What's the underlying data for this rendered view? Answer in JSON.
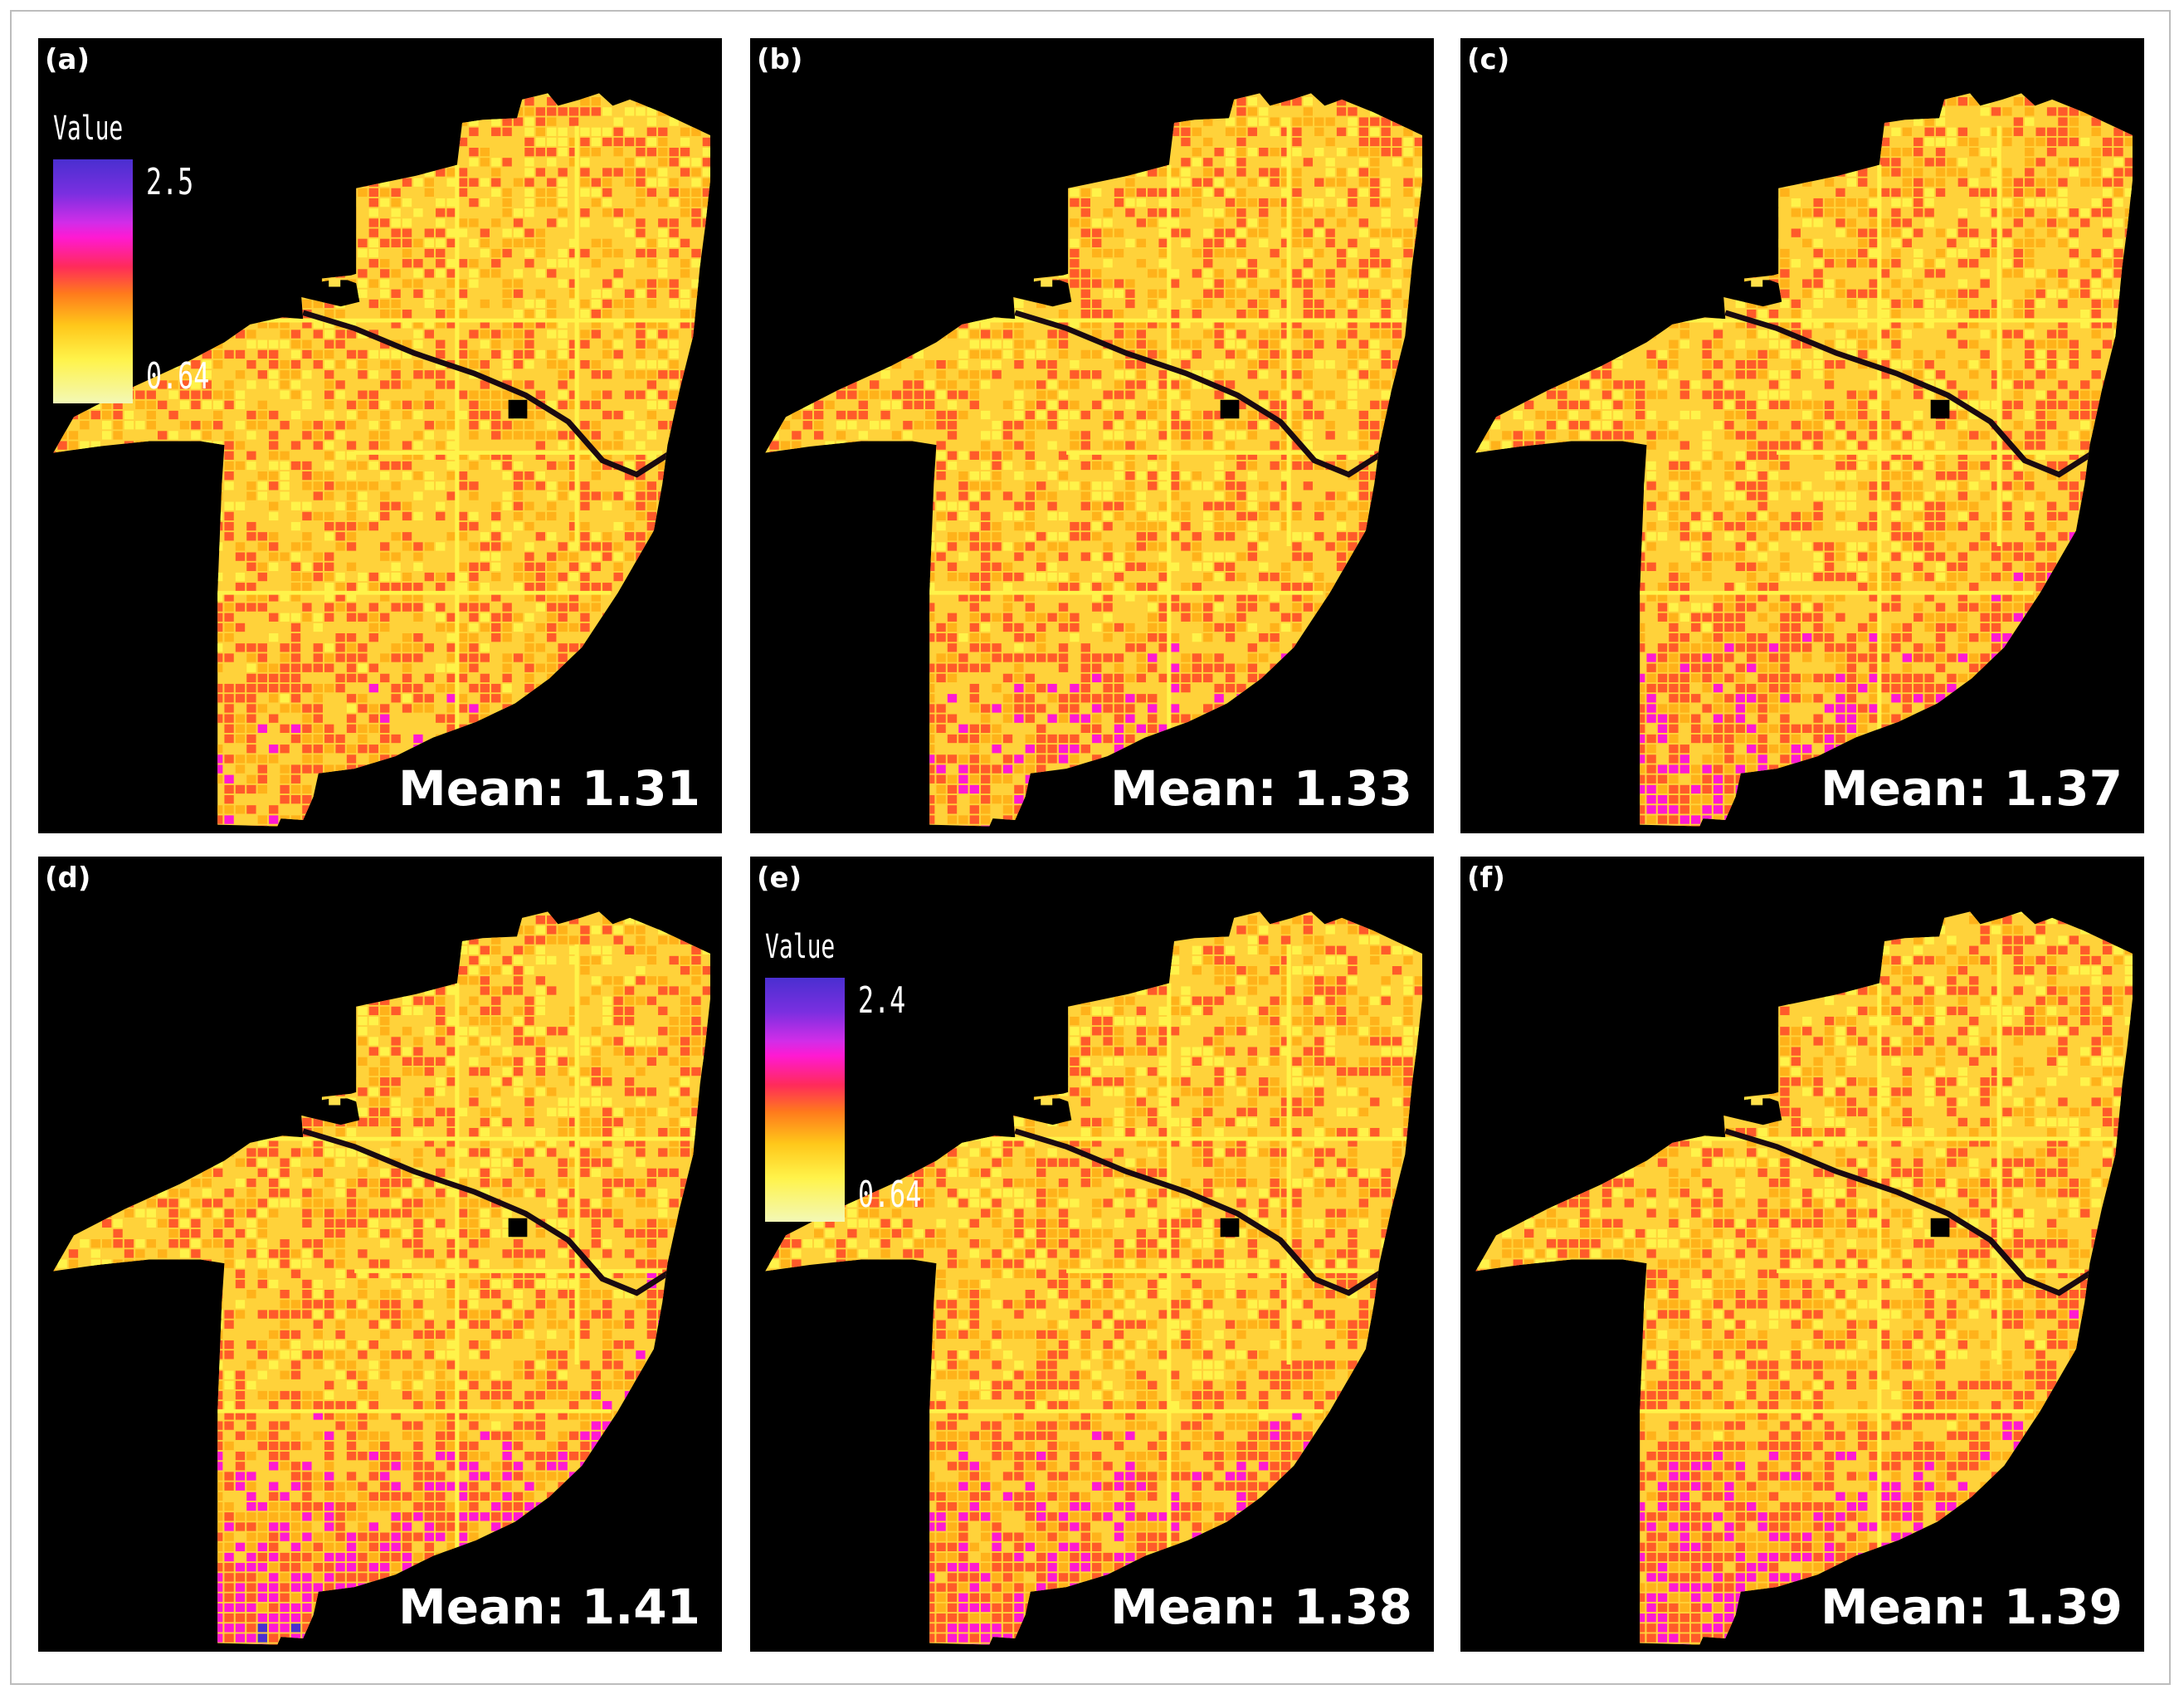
{
  "panels": [
    {
      "label": "(a)",
      "mean_text": "Mean: 1.31",
      "mean": 1.31,
      "legend": {
        "title": "Value",
        "max": "2.5",
        "min": "0.64"
      }
    },
    {
      "label": "(b)",
      "mean_text": "Mean: 1.33",
      "mean": 1.33
    },
    {
      "label": "(c)",
      "mean_text": "Mean: 1.37",
      "mean": 1.37
    },
    {
      "label": "(d)",
      "mean_text": "Mean: 1.41",
      "mean": 1.41
    },
    {
      "label": "(e)",
      "mean_text": "Mean: 1.38",
      "mean": 1.38,
      "legend": {
        "title": "Value",
        "max": "2.4",
        "min": "0.64"
      }
    },
    {
      "label": "(f)",
      "mean_text": "Mean: 1.39",
      "mean": 1.39
    }
  ],
  "colors": {
    "background": "#000000",
    "low": "#fff34a",
    "mid": "#ffb21a",
    "high_pink": "#ff19d2",
    "high_purple": "#4a2fd0",
    "frame": "#bdbdbd"
  }
}
